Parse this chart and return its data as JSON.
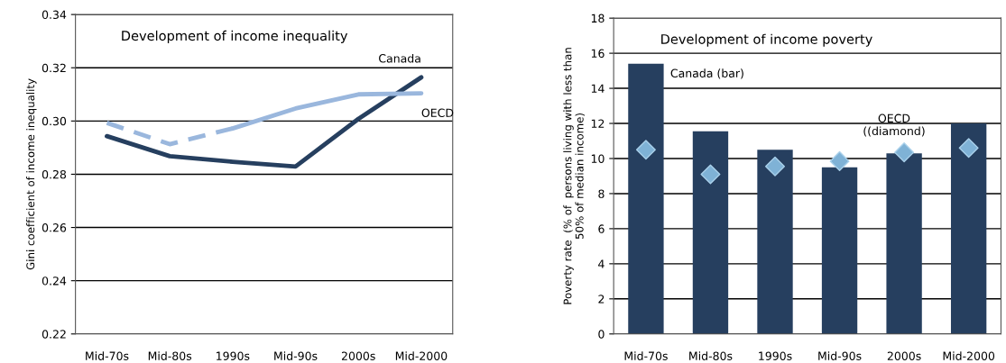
{
  "chart_data": [
    {
      "type": "line",
      "title": "Development of income inequality",
      "ylabel": "Gini coefficient of income inequality",
      "categories": [
        "Mid-70s",
        "Mid-80s",
        "1990s",
        "Mid-90s",
        "2000s",
        "Mid-2000"
      ],
      "series": [
        {
          "name": "Canada",
          "color": "#263f5f",
          "line_style": "solid",
          "values": [
            0.2943,
            0.2868,
            0.2847,
            0.2829,
            0.3008,
            0.3164
          ]
        },
        {
          "color": "#9ab7dd",
          "line_style": "dashed",
          "values": [
            0.2993,
            0.2913,
            0.2972,
            null,
            null,
            null
          ]
        },
        {
          "name": "OECD",
          "color": "#9ab7dd",
          "line_style": "solid",
          "values": [
            null,
            null,
            0.2972,
            0.3047,
            0.31,
            0.3104
          ]
        }
      ],
      "ylim": [
        0.22,
        0.34
      ],
      "yticks": [
        {
          "value": 0.22,
          "label": "0.22"
        },
        {
          "value": 0.24,
          "label": "0.24"
        },
        {
          "value": 0.26,
          "label": "0.26"
        },
        {
          "value": 0.28,
          "label": "0.28"
        },
        {
          "value": 0.3,
          "label": "0.30"
        },
        {
          "value": 0.32,
          "label": "0.32"
        },
        {
          "value": 0.34,
          "label": "0.34"
        }
      ],
      "grid": "y",
      "marker": "none"
    },
    {
      "type": "bar",
      "title": "Development of income poverty",
      "ylabel": "Poverty rate  (% of  persons living with less than\n50% of median income)",
      "categories": [
        "Mid-70s",
        "Mid-80s",
        "1990s",
        "Mid-90s",
        "2000s",
        "Mid-2000"
      ],
      "series": [
        {
          "name": "Canada (bar)",
          "type": "bar",
          "color": "#263f5f",
          "values": [
            15.4,
            11.55,
            10.5,
            9.5,
            10.3,
            12.0
          ]
        },
        {
          "name": "OECD\n((diamond)",
          "type": "scatter",
          "color": "#7fb2d6",
          "marker": "diamond",
          "values": [
            10.5,
            9.1,
            9.55,
            9.85,
            10.35,
            10.6
          ]
        }
      ],
      "ylim": [
        0,
        18
      ],
      "yticks": [
        0,
        2,
        4,
        6,
        8,
        10,
        12,
        14,
        16,
        18
      ],
      "grid": "y"
    }
  ]
}
